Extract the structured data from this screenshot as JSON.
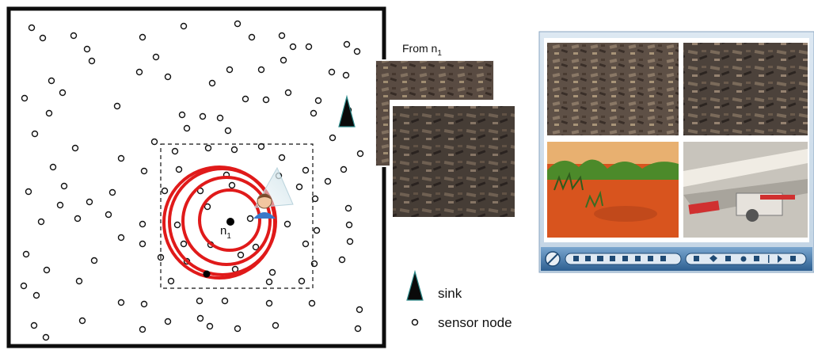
{
  "labels": {
    "from_prefix": "From n",
    "from_sub": "1",
    "node_main": "n",
    "node_sub": "1"
  },
  "legend": {
    "sink_label": "sink",
    "sensor_label": "sensor node"
  },
  "icons": {
    "sink": "triangle-icon",
    "sensor": "circle-icon",
    "camera": "camera-person-icon"
  },
  "colors": {
    "rings": "#e01a1a",
    "sink": "#0a0a0a",
    "sink_edge": "#2e8b8b",
    "frame": "#0d0d0d",
    "toolbar": "#3c74a8"
  },
  "photos": [
    {
      "name": "rubble-photo-1",
      "palette": [
        "#6a5a4e",
        "#3a302a",
        "#8c7a68",
        "#a08c74"
      ]
    },
    {
      "name": "rubble-photo-2",
      "palette": [
        "#5c5048",
        "#2e2824",
        "#7c6c5c",
        "#4a3e36"
      ]
    },
    {
      "name": "grass-soil-photo",
      "palette": [
        "#d8541e",
        "#4c8a2a",
        "#f0c060",
        "#2f5c1c"
      ]
    },
    {
      "name": "collapsed-building-photo",
      "palette": [
        "#c8c4bc",
        "#9c9890",
        "#d03030",
        "#f0ece4"
      ]
    }
  ]
}
